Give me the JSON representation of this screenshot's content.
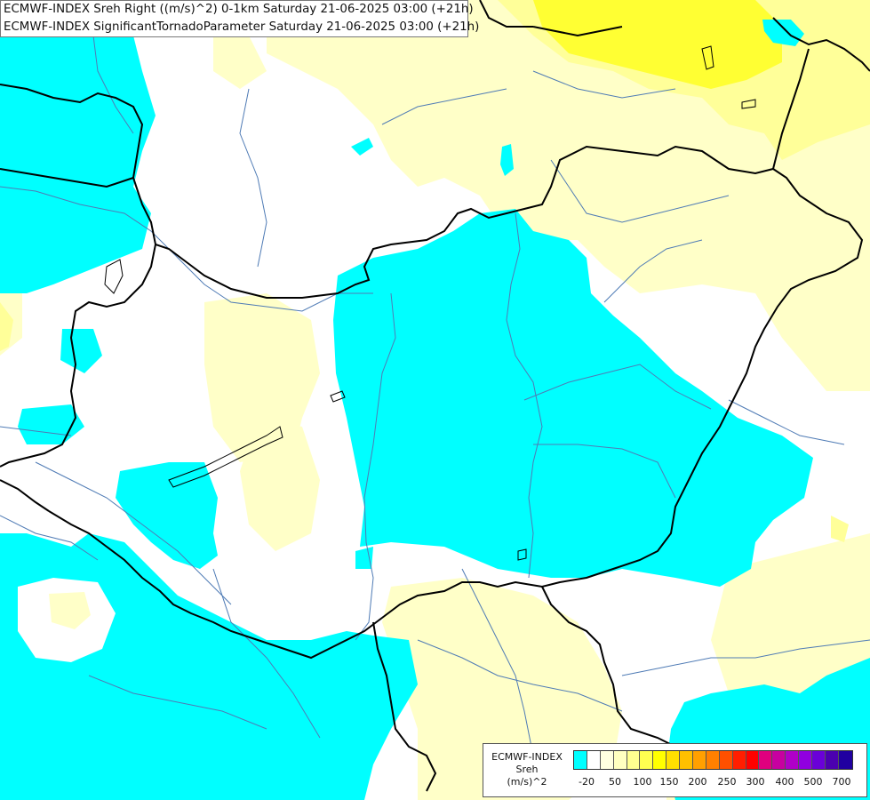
{
  "title": {
    "line1": "ECMWF-INDEX Sreh Right ((m/s)^2) 0-1km Saturday 21-06-2025 03:00 (+21h)",
    "line2": "ECMWF-INDEX SignificantTornadoParameter Saturday 21-06-2025 03:00 (+21h)"
  },
  "legend": {
    "label1": "ECMWF-INDEX",
    "label2": "Sreh",
    "label3": "(m/s)^2",
    "swatch_colors": [
      "#00ffff",
      "#ffffff",
      "#ffffe0",
      "#ffffc0",
      "#ffff90",
      "#ffff50",
      "#ffff00",
      "#ffe000",
      "#ffc000",
      "#ffa000",
      "#ff8000",
      "#ff5000",
      "#ff1e00",
      "#ff0000",
      "#e0007e",
      "#c800a0",
      "#b000c8",
      "#9000e0",
      "#6a00d8",
      "#4b00b0",
      "#2000a0"
    ],
    "ticks": [
      "-20",
      "50",
      "100",
      "150",
      "200",
      "250",
      "300",
      "400",
      "500",
      "700"
    ]
  },
  "colors": {
    "cyan": "#00ffff",
    "pale_yellow": "#ffffc8",
    "light_yellow": "#ffff99",
    "yellow": "#ffff33",
    "border": "#000000",
    "river": "#4f7bb5"
  }
}
